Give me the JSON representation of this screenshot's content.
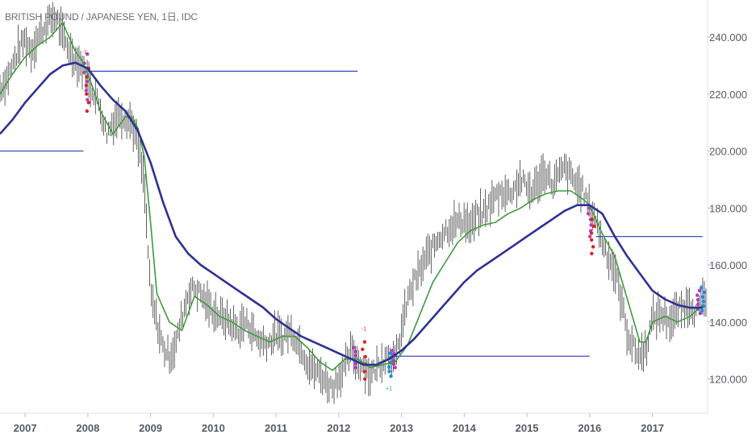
{
  "chart_data": {
    "type": "line",
    "title": "BRITISH POUND / JAPANESE YEN, 1日, IDC",
    "x_ticks": [
      "2007",
      "2008",
      "2009",
      "2010",
      "2011",
      "2012",
      "2013",
      "2014",
      "2015",
      "2016",
      "2017"
    ],
    "y_ticks": [
      "120.000",
      "140.000",
      "160.000",
      "180.000",
      "200.000",
      "220.000",
      "240.000"
    ],
    "ylim": [
      108,
      253
    ],
    "xlim": [
      2006.6,
      2017.88
    ],
    "grid": false,
    "legend": "none",
    "colors": {
      "price": "#3a3a3a",
      "fast_ma": "#3d9b3d",
      "slow_ma": "#2e3192",
      "level": "#3b4cc0",
      "sell_marker": "#e02020",
      "buy_marker": "#1e88e5",
      "mixed_marker": "#b03fc0",
      "axis_text": "#555b66"
    },
    "series": [
      {
        "role": "price",
        "x": [
          2006.6,
          2006.7,
          2006.8,
          2006.9,
          2007.0,
          2007.1,
          2007.2,
          2007.3,
          2007.4,
          2007.5,
          2007.6,
          2007.7,
          2007.8,
          2007.9,
          2008.0,
          2008.1,
          2008.2,
          2008.3,
          2008.4,
          2008.5,
          2008.6,
          2008.7,
          2008.8,
          2008.9,
          2009.0,
          2009.1,
          2009.2,
          2009.3,
          2009.4,
          2009.5,
          2009.6,
          2009.7,
          2009.8,
          2009.9,
          2010.0,
          2010.1,
          2010.2,
          2010.3,
          2010.4,
          2010.5,
          2010.6,
          2010.7,
          2010.8,
          2010.9,
          2011.0,
          2011.1,
          2011.2,
          2011.3,
          2011.4,
          2011.5,
          2011.6,
          2011.7,
          2011.8,
          2011.9,
          2012.0,
          2012.1,
          2012.2,
          2012.3,
          2012.4,
          2012.5,
          2012.6,
          2012.7,
          2012.8,
          2012.9,
          2013.0,
          2013.1,
          2013.2,
          2013.3,
          2013.4,
          2013.5,
          2013.6,
          2013.7,
          2013.8,
          2013.9,
          2014.0,
          2014.1,
          2014.2,
          2014.3,
          2014.4,
          2014.5,
          2014.6,
          2014.7,
          2014.8,
          2014.9,
          2015.0,
          2015.1,
          2015.2,
          2015.3,
          2015.4,
          2015.5,
          2015.6,
          2015.7,
          2015.8,
          2015.9,
          2016.0,
          2016.1,
          2016.2,
          2016.3,
          2016.4,
          2016.5,
          2016.6,
          2016.7,
          2016.8,
          2016.9,
          2017.0,
          2017.1,
          2017.2,
          2017.3,
          2017.4,
          2017.5,
          2017.6,
          2017.7,
          2017.8
        ],
        "y": [
          222,
          225,
          230,
          236,
          239,
          235,
          240,
          243,
          246,
          247,
          240,
          236,
          232,
          230,
          225,
          220,
          215,
          206,
          210,
          213,
          212,
          210,
          202,
          188,
          150,
          140,
          131,
          128,
          132,
          142,
          150,
          152,
          150,
          146,
          144,
          142,
          141,
          139,
          137,
          140,
          138,
          134,
          133,
          133,
          136,
          134,
          137,
          135,
          131,
          126,
          123,
          122,
          119,
          117,
          121,
          124,
          130,
          126,
          125,
          121,
          124,
          127,
          129,
          126,
          137,
          148,
          154,
          158,
          163,
          166,
          170,
          172,
          174,
          175,
          176,
          173,
          177,
          178,
          181,
          184,
          186,
          185,
          187,
          190,
          187,
          186,
          190,
          193,
          188,
          191,
          194,
          191,
          188,
          186,
          180,
          176,
          168,
          163,
          158,
          148,
          136,
          131,
          128,
          131,
          141,
          143,
          142,
          140,
          144,
          145,
          147,
          143,
          148
        ]
      },
      {
        "role": "fast_ma",
        "x": [
          2006.6,
          2006.8,
          2007.0,
          2007.2,
          2007.4,
          2007.6,
          2007.7,
          2007.8,
          2007.9,
          2008.0,
          2008.1,
          2008.2,
          2008.4,
          2008.6,
          2008.7,
          2008.8,
          2008.9,
          2009.0,
          2009.1,
          2009.3,
          2009.5,
          2009.7,
          2009.9,
          2010.1,
          2010.3,
          2010.5,
          2010.7,
          2010.9,
          2011.1,
          2011.3,
          2011.5,
          2011.7,
          2011.9,
          2012.1,
          2012.3,
          2012.5,
          2012.7,
          2012.9,
          2013.1,
          2013.3,
          2013.5,
          2013.7,
          2013.9,
          2014.1,
          2014.3,
          2014.5,
          2014.7,
          2014.9,
          2015.1,
          2015.3,
          2015.5,
          2015.7,
          2015.9,
          2016.0,
          2016.1,
          2016.2,
          2016.4,
          2016.6,
          2016.8,
          2016.9,
          2017.0,
          2017.2,
          2017.4,
          2017.6,
          2017.8
        ],
        "y": [
          220,
          227,
          233,
          237,
          240,
          245,
          240,
          235,
          232,
          227,
          221,
          214,
          206,
          212,
          212,
          208,
          198,
          175,
          150,
          140,
          137,
          149,
          146,
          142,
          140,
          137,
          135,
          133,
          135,
          135,
          131,
          126,
          123,
          127,
          127,
          124,
          125,
          126,
          132,
          143,
          154,
          161,
          168,
          172,
          174,
          175,
          178,
          180,
          183,
          185,
          186,
          186,
          183,
          181,
          176,
          171,
          163,
          148,
          133,
          133,
          140,
          142,
          140,
          142,
          146
        ]
      },
      {
        "role": "slow_ma",
        "x": [
          2006.6,
          2006.8,
          2007.0,
          2007.2,
          2007.4,
          2007.6,
          2007.8,
          2008.0,
          2008.2,
          2008.4,
          2008.6,
          2008.8,
          2009.0,
          2009.2,
          2009.4,
          2009.6,
          2009.8,
          2010.0,
          2010.2,
          2010.4,
          2010.6,
          2010.8,
          2011.0,
          2011.2,
          2011.4,
          2011.6,
          2011.8,
          2012.0,
          2012.2,
          2012.4,
          2012.6,
          2012.8,
          2013.0,
          2013.2,
          2013.4,
          2013.6,
          2013.8,
          2014.0,
          2014.2,
          2014.4,
          2014.6,
          2014.8,
          2015.0,
          2015.2,
          2015.4,
          2015.6,
          2015.8,
          2016.0,
          2016.2,
          2016.4,
          2016.6,
          2016.8,
          2017.0,
          2017.2,
          2017.4,
          2017.6,
          2017.8
        ],
        "y": [
          206,
          211,
          217,
          222,
          227,
          230,
          231,
          229,
          223,
          218,
          214,
          207,
          196,
          182,
          170,
          164,
          160,
          157,
          154,
          151,
          148,
          145,
          141,
          138,
          135,
          133,
          131,
          129,
          127,
          125,
          125,
          127,
          130,
          134,
          139,
          144,
          149,
          154,
          158,
          161,
          164,
          167,
          170,
          173,
          176,
          179,
          181,
          181,
          178,
          170,
          163,
          157,
          151,
          148,
          146,
          145,
          145
        ]
      }
    ],
    "levels": [
      {
        "y": 228,
        "x_start": 2008.0,
        "x_end": 2012.3
      },
      {
        "y": 200,
        "x_start": 2006.6,
        "x_end": 2007.93
      },
      {
        "y": 128,
        "x_start": 2012.88,
        "x_end": 2016.0
      },
      {
        "y": 170,
        "x_start": 2016.1,
        "x_end": 2017.8
      }
    ],
    "signal_labels": [
      {
        "text": "-1",
        "x": 2007.95,
        "y": 234,
        "type": "sell"
      },
      {
        "text": "-1",
        "x": 2012.4,
        "y": 137,
        "type": "sell"
      },
      {
        "text": "+1",
        "x": 2012.8,
        "y": 116,
        "type": "buy"
      }
    ]
  }
}
